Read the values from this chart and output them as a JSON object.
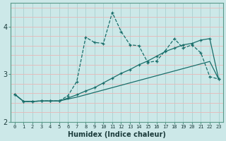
{
  "xlabel": "Humidex (Indice chaleur)",
  "background_color": "#cce8e8",
  "grid_color_h": "#e8b8b8",
  "grid_color_v": "#aad0d0",
  "line_color": "#1a6e6a",
  "x_values": [
    0,
    1,
    2,
    3,
    4,
    5,
    6,
    7,
    8,
    9,
    10,
    11,
    12,
    13,
    14,
    15,
    16,
    17,
    18,
    19,
    20,
    21,
    22,
    23
  ],
  "line1": [
    2.58,
    2.43,
    2.43,
    2.44,
    2.44,
    2.44,
    2.55,
    2.85,
    3.78,
    3.67,
    3.65,
    4.3,
    3.9,
    3.62,
    3.6,
    3.25,
    3.28,
    3.5,
    3.75,
    3.55,
    3.62,
    3.45,
    2.95,
    2.9
  ],
  "line2": [
    2.58,
    2.43,
    2.43,
    2.44,
    2.44,
    2.44,
    2.5,
    2.57,
    2.65,
    2.72,
    2.82,
    2.92,
    3.02,
    3.1,
    3.2,
    3.28,
    3.38,
    3.48,
    3.55,
    3.62,
    3.65,
    3.72,
    3.75,
    2.9
  ],
  "line3": [
    2.58,
    2.43,
    2.43,
    2.44,
    2.44,
    2.44,
    2.48,
    2.52,
    2.57,
    2.62,
    2.67,
    2.72,
    2.77,
    2.82,
    2.87,
    2.92,
    2.97,
    3.02,
    3.07,
    3.12,
    3.17,
    3.22,
    3.27,
    2.9
  ],
  "ylim": [
    2.0,
    4.5
  ],
  "xlim": [
    -0.5,
    23.5
  ],
  "yticks": [
    2,
    3,
    4
  ],
  "xticks": [
    0,
    1,
    2,
    3,
    4,
    5,
    6,
    7,
    8,
    9,
    10,
    11,
    12,
    13,
    14,
    15,
    16,
    17,
    18,
    19,
    20,
    21,
    22,
    23
  ]
}
